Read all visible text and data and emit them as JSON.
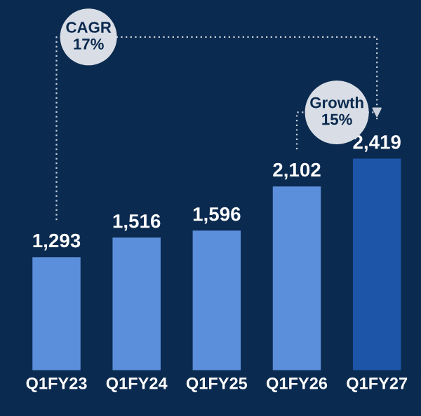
{
  "chart_data": {
    "type": "bar",
    "categories": [
      "Q1FY23",
      "Q1FY24",
      "Q1FY25",
      "Q1FY26",
      "Q1FY27"
    ],
    "values": [
      1293,
      1516,
      1596,
      2102,
      2419
    ],
    "colors": [
      "#5b8fdb",
      "#5b8fdb",
      "#5b8fdb",
      "#5b8fdb",
      "#1d55a8"
    ],
    "value_labels": [
      "1,293",
      "1,516",
      "1,596",
      "2,102",
      "2,419"
    ],
    "annotations": [
      "CAGR\n17%",
      "Growth\n15%"
    ]
  }
}
